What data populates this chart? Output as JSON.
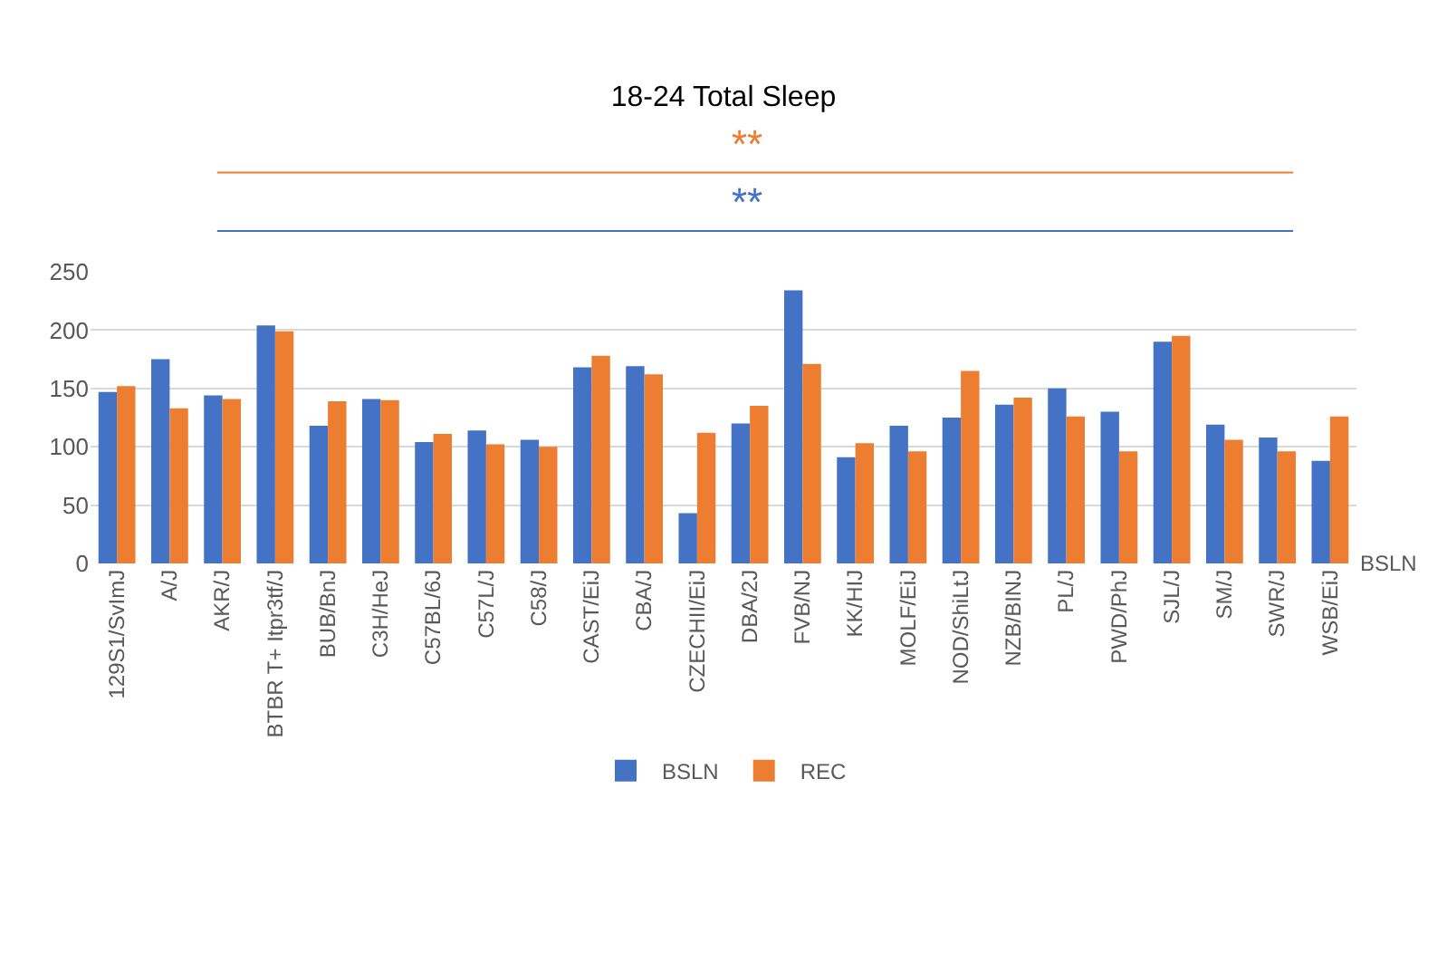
{
  "chart_data": {
    "type": "bar",
    "title": "18-24 Total Sleep",
    "categories": [
      "129S1/SvImJ",
      "A/J",
      "AKR/J",
      "BTBR T+ Itpr3tf/J",
      "BUB/BnJ",
      "C3H/HeJ",
      "C57BL/6J",
      "C57L/J",
      "C58/J",
      "CAST/EiJ",
      "CBA/J",
      "CZECHII/EiJ",
      "DBA/2J",
      "FVB/NJ",
      "KK/HIJ",
      "MOLF/EiJ",
      "NOD/ShiLtJ",
      "NZB/BINJ",
      "PL/J",
      "PWD/PhJ",
      "SJL/J",
      "SM/J",
      "SWR/J",
      "WSB/EiJ"
    ],
    "series": [
      {
        "name": "BSLN",
        "color": "#4472c4",
        "values": [
          147,
          175,
          144,
          204,
          118,
          141,
          104,
          114,
          106,
          168,
          169,
          43,
          120,
          234,
          91,
          118,
          125,
          136,
          150,
          130,
          190,
          119,
          108,
          88
        ]
      },
      {
        "name": "REC",
        "color": "#ed7d31",
        "values": [
          152,
          133,
          141,
          199,
          139,
          140,
          111,
          102,
          100,
          178,
          162,
          112,
          135,
          171,
          103,
          96,
          165,
          142,
          126,
          96,
          195,
          106,
          96,
          126
        ]
      }
    ],
    "ylim": [
      0,
      250
    ],
    "yticks": [
      0,
      50,
      100,
      150,
      200,
      250
    ],
    "grid": "y",
    "legend": "bottom",
    "annotations": [
      "**",
      "**",
      "BSLN"
    ]
  }
}
